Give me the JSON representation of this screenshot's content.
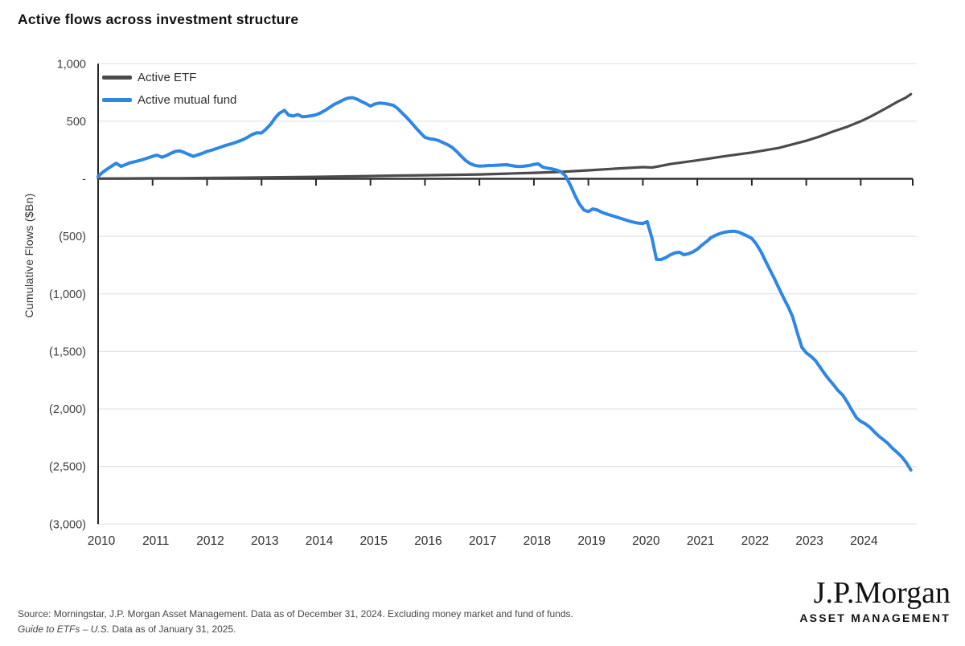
{
  "title": "Active flows across investment structure",
  "y_axis_label": "Cumulative Flows ($Bn)",
  "legend": [
    {
      "label": "Active ETF",
      "color": "#4b4b4d"
    },
    {
      "label": "Active mutual fund",
      "color": "#2e87e4"
    }
  ],
  "footer": {
    "line1": "Source: Morningstar, J.P. Morgan Asset Management. Data as of December 31, 2024. Excluding money market and fund of funds.",
    "line2_italic": "Guide to ETFs – U.S.",
    "line2_rest": " Data as of January 31, 2025."
  },
  "logo": {
    "wordmark": "J.P.Morgan",
    "subtitle": "ASSET MANAGEMENT"
  },
  "chart_data": {
    "type": "line",
    "title": "Active flows across investment structure",
    "xlabel": "",
    "ylabel": "Cumulative Flows ($Bn)",
    "unit": "$Bn",
    "xlim": [
      2010,
      2024.97
    ],
    "ylim": [
      -3000,
      1000
    ],
    "grid": "horizontal",
    "legend_position": "top-left-inside",
    "x_ticks": [
      2010,
      2011,
      2012,
      2013,
      2014,
      2015,
      2016,
      2017,
      2018,
      2019,
      2020,
      2021,
      2022,
      2023,
      2024
    ],
    "y_ticks": [
      {
        "label": "1,000",
        "value": 1000
      },
      {
        "label": "500",
        "value": 500
      },
      {
        "label": "-",
        "value": 0
      },
      {
        "label": "(500)",
        "value": -500
      },
      {
        "label": "(1,000)",
        "value": -1000
      },
      {
        "label": "(1,500)",
        "value": -1500
      },
      {
        "label": "(2,000)",
        "value": -2000
      },
      {
        "label": "(2,500)",
        "value": -2500
      },
      {
        "label": "(3,000)",
        "value": -3000
      }
    ],
    "series": [
      {
        "id": "active-etf",
        "name": "Active ETF",
        "color": "#4b4b4d",
        "width": 3.2,
        "points": [
          [
            2010.0,
            2
          ],
          [
            2010.5,
            3
          ],
          [
            2011.0,
            4
          ],
          [
            2011.5,
            5
          ],
          [
            2012.0,
            7
          ],
          [
            2012.5,
            9
          ],
          [
            2013.0,
            11
          ],
          [
            2013.5,
            14
          ],
          [
            2014.0,
            17
          ],
          [
            2014.5,
            20
          ],
          [
            2015.0,
            24
          ],
          [
            2015.5,
            28
          ],
          [
            2016.0,
            31
          ],
          [
            2016.5,
            34
          ],
          [
            2017.0,
            38
          ],
          [
            2017.5,
            45
          ],
          [
            2018.0,
            52
          ],
          [
            2018.5,
            60
          ],
          [
            2019.0,
            73
          ],
          [
            2019.5,
            88
          ],
          [
            2020.0,
            101
          ],
          [
            2020.17,
            98
          ],
          [
            2020.33,
            112
          ],
          [
            2020.5,
            128
          ],
          [
            2021.0,
            160
          ],
          [
            2021.5,
            196
          ],
          [
            2022.0,
            228
          ],
          [
            2022.5,
            268
          ],
          [
            2023.0,
            330
          ],
          [
            2023.25,
            368
          ],
          [
            2023.5,
            412
          ],
          [
            2023.75,
            452
          ],
          [
            2024.0,
            500
          ],
          [
            2024.17,
            538
          ],
          [
            2024.33,
            578
          ],
          [
            2024.5,
            622
          ],
          [
            2024.67,
            668
          ],
          [
            2024.83,
            706
          ],
          [
            2024.92,
            735
          ]
        ]
      },
      {
        "id": "active-mutual-fund",
        "name": "Active mutual fund",
        "color": "#2e87e4",
        "width": 4,
        "points": [
          [
            2010.0,
            20
          ],
          [
            2010.08,
            55
          ],
          [
            2010.17,
            85
          ],
          [
            2010.25,
            110
          ],
          [
            2010.33,
            135
          ],
          [
            2010.42,
            108
          ],
          [
            2010.5,
            122
          ],
          [
            2010.58,
            138
          ],
          [
            2010.67,
            148
          ],
          [
            2010.75,
            158
          ],
          [
            2010.83,
            168
          ],
          [
            2010.92,
            182
          ],
          [
            2011.0,
            195
          ],
          [
            2011.08,
            205
          ],
          [
            2011.17,
            188
          ],
          [
            2011.25,
            200
          ],
          [
            2011.33,
            220
          ],
          [
            2011.42,
            238
          ],
          [
            2011.5,
            242
          ],
          [
            2011.58,
            228
          ],
          [
            2011.67,
            210
          ],
          [
            2011.75,
            195
          ],
          [
            2011.83,
            208
          ],
          [
            2011.92,
            222
          ],
          [
            2012.0,
            238
          ],
          [
            2012.08,
            248
          ],
          [
            2012.17,
            262
          ],
          [
            2012.25,
            275
          ],
          [
            2012.33,
            288
          ],
          [
            2012.42,
            300
          ],
          [
            2012.5,
            312
          ],
          [
            2012.58,
            325
          ],
          [
            2012.67,
            342
          ],
          [
            2012.75,
            362
          ],
          [
            2012.83,
            385
          ],
          [
            2012.92,
            400
          ],
          [
            2013.0,
            398
          ],
          [
            2013.08,
            430
          ],
          [
            2013.17,
            475
          ],
          [
            2013.25,
            530
          ],
          [
            2013.33,
            570
          ],
          [
            2013.42,
            595
          ],
          [
            2013.5,
            552
          ],
          [
            2013.58,
            545
          ],
          [
            2013.67,
            558
          ],
          [
            2013.75,
            538
          ],
          [
            2013.83,
            542
          ],
          [
            2013.92,
            548
          ],
          [
            2014.0,
            556
          ],
          [
            2014.08,
            572
          ],
          [
            2014.17,
            595
          ],
          [
            2014.25,
            620
          ],
          [
            2014.33,
            645
          ],
          [
            2014.42,
            665
          ],
          [
            2014.5,
            685
          ],
          [
            2014.58,
            700
          ],
          [
            2014.67,
            705
          ],
          [
            2014.75,
            692
          ],
          [
            2014.83,
            672
          ],
          [
            2014.92,
            652
          ],
          [
            2015.0,
            632
          ],
          [
            2015.08,
            650
          ],
          [
            2015.17,
            658
          ],
          [
            2015.25,
            655
          ],
          [
            2015.33,
            648
          ],
          [
            2015.42,
            638
          ],
          [
            2015.5,
            610
          ],
          [
            2015.58,
            572
          ],
          [
            2015.67,
            530
          ],
          [
            2015.75,
            488
          ],
          [
            2015.83,
            445
          ],
          [
            2015.92,
            398
          ],
          [
            2016.0,
            360
          ],
          [
            2016.08,
            348
          ],
          [
            2016.17,
            342
          ],
          [
            2016.25,
            332
          ],
          [
            2016.33,
            315
          ],
          [
            2016.42,
            295
          ],
          [
            2016.5,
            272
          ],
          [
            2016.58,
            238
          ],
          [
            2016.67,
            195
          ],
          [
            2016.75,
            158
          ],
          [
            2016.83,
            132
          ],
          [
            2016.92,
            115
          ],
          [
            2017.0,
            110
          ],
          [
            2017.08,
            112
          ],
          [
            2017.17,
            115
          ],
          [
            2017.25,
            116
          ],
          [
            2017.33,
            118
          ],
          [
            2017.42,
            120
          ],
          [
            2017.5,
            122
          ],
          [
            2017.58,
            115
          ],
          [
            2017.67,
            108
          ],
          [
            2017.75,
            106
          ],
          [
            2017.83,
            110
          ],
          [
            2017.92,
            116
          ],
          [
            2018.0,
            125
          ],
          [
            2018.08,
            130
          ],
          [
            2018.17,
            100
          ],
          [
            2018.25,
            92
          ],
          [
            2018.33,
            86
          ],
          [
            2018.42,
            75
          ],
          [
            2018.5,
            60
          ],
          [
            2018.58,
            25
          ],
          [
            2018.67,
            -55
          ],
          [
            2018.75,
            -140
          ],
          [
            2018.83,
            -215
          ],
          [
            2018.92,
            -272
          ],
          [
            2019.0,
            -285
          ],
          [
            2019.08,
            -262
          ],
          [
            2019.17,
            -272
          ],
          [
            2019.25,
            -292
          ],
          [
            2019.33,
            -305
          ],
          [
            2019.42,
            -318
          ],
          [
            2019.5,
            -330
          ],
          [
            2019.58,
            -342
          ],
          [
            2019.67,
            -355
          ],
          [
            2019.75,
            -368
          ],
          [
            2019.83,
            -378
          ],
          [
            2019.92,
            -386
          ],
          [
            2020.0,
            -388
          ],
          [
            2020.08,
            -372
          ],
          [
            2020.17,
            -520
          ],
          [
            2020.25,
            -700
          ],
          [
            2020.33,
            -702
          ],
          [
            2020.42,
            -685
          ],
          [
            2020.5,
            -662
          ],
          [
            2020.58,
            -645
          ],
          [
            2020.67,
            -638
          ],
          [
            2020.75,
            -660
          ],
          [
            2020.83,
            -652
          ],
          [
            2020.92,
            -635
          ],
          [
            2021.0,
            -612
          ],
          [
            2021.08,
            -578
          ],
          [
            2021.17,
            -545
          ],
          [
            2021.25,
            -512
          ],
          [
            2021.33,
            -492
          ],
          [
            2021.42,
            -475
          ],
          [
            2021.5,
            -465
          ],
          [
            2021.58,
            -458
          ],
          [
            2021.67,
            -455
          ],
          [
            2021.75,
            -462
          ],
          [
            2021.83,
            -478
          ],
          [
            2021.92,
            -498
          ],
          [
            2022.0,
            -518
          ],
          [
            2022.08,
            -565
          ],
          [
            2022.17,
            -635
          ],
          [
            2022.25,
            -712
          ],
          [
            2022.33,
            -788
          ],
          [
            2022.42,
            -872
          ],
          [
            2022.5,
            -952
          ],
          [
            2022.58,
            -1032
          ],
          [
            2022.67,
            -1115
          ],
          [
            2022.75,
            -1200
          ],
          [
            2022.83,
            -1330
          ],
          [
            2022.92,
            -1465
          ],
          [
            2023.0,
            -1512
          ],
          [
            2023.08,
            -1540
          ],
          [
            2023.17,
            -1580
          ],
          [
            2023.25,
            -1635
          ],
          [
            2023.33,
            -1690
          ],
          [
            2023.42,
            -1745
          ],
          [
            2023.5,
            -1790
          ],
          [
            2023.58,
            -1838
          ],
          [
            2023.67,
            -1880
          ],
          [
            2023.75,
            -1938
          ],
          [
            2023.83,
            -2005
          ],
          [
            2023.92,
            -2075
          ],
          [
            2024.0,
            -2108
          ],
          [
            2024.08,
            -2128
          ],
          [
            2024.17,
            -2160
          ],
          [
            2024.25,
            -2200
          ],
          [
            2024.33,
            -2235
          ],
          [
            2024.42,
            -2268
          ],
          [
            2024.5,
            -2300
          ],
          [
            2024.58,
            -2340
          ],
          [
            2024.67,
            -2378
          ],
          [
            2024.75,
            -2415
          ],
          [
            2024.83,
            -2462
          ],
          [
            2024.92,
            -2530
          ]
        ]
      }
    ]
  }
}
